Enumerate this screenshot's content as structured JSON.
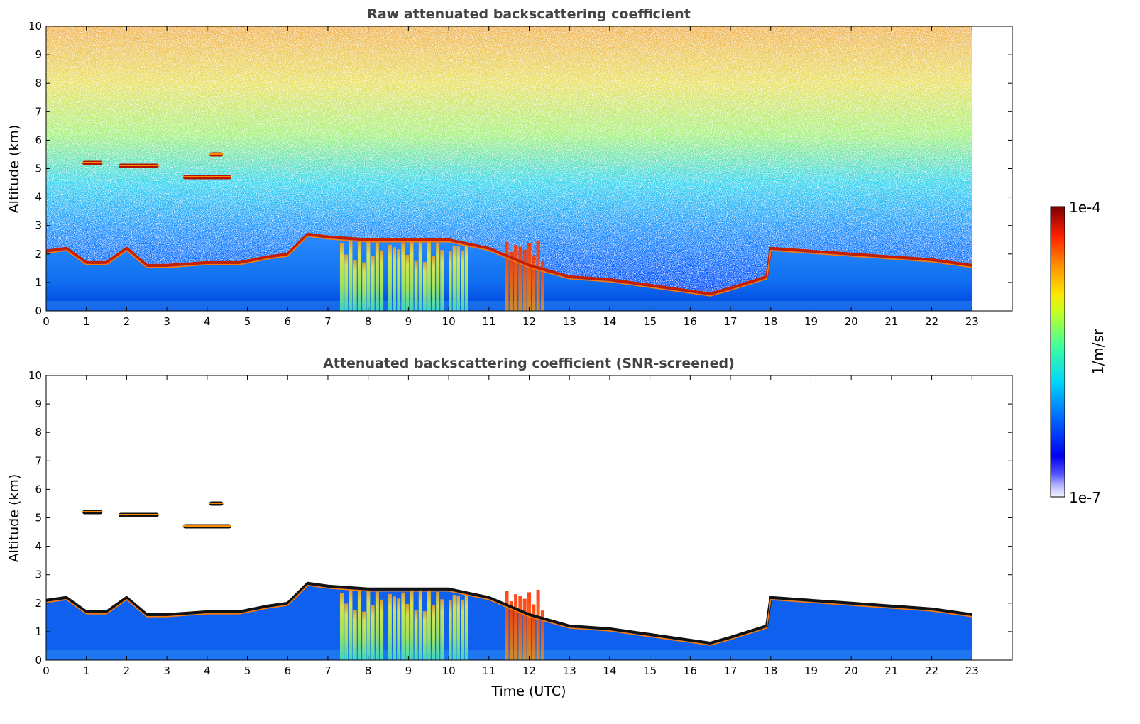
{
  "chart_data": [
    {
      "type": "heatmap",
      "title": "Raw attenuated backscattering coefficient",
      "xlabel": "",
      "ylabel": "Altitude (km)",
      "xlim": [
        0,
        24
      ],
      "ylim": [
        0,
        10
      ],
      "xticks": [
        "0",
        "1",
        "2",
        "3",
        "4",
        "5",
        "6",
        "7",
        "8",
        "9",
        "10",
        "11",
        "12",
        "13",
        "14",
        "15",
        "16",
        "17",
        "18",
        "19",
        "20",
        "21",
        "22",
        "23"
      ],
      "yticks": [
        "0",
        "1",
        "2",
        "3",
        "4",
        "5",
        "6",
        "7",
        "8",
        "9",
        "10"
      ],
      "data_end_hour": 23,
      "screened": false,
      "features": {
        "boundary_layer_top_km": [
          [
            0,
            2.1
          ],
          [
            0.5,
            2.2
          ],
          [
            1,
            1.7
          ],
          [
            1.5,
            1.7
          ],
          [
            2,
            2.2
          ],
          [
            2.5,
            1.6
          ],
          [
            3,
            1.6
          ],
          [
            4,
            1.7
          ],
          [
            4.8,
            1.7
          ],
          [
            5.5,
            1.9
          ],
          [
            6,
            2.0
          ],
          [
            6.5,
            2.7
          ],
          [
            7,
            2.6
          ],
          [
            8,
            2.5
          ],
          [
            9,
            2.5
          ],
          [
            10,
            2.5
          ],
          [
            11,
            2.2
          ],
          [
            12,
            1.6
          ],
          [
            13,
            1.2
          ],
          [
            14,
            1.1
          ],
          [
            15,
            0.9
          ],
          [
            16,
            0.7
          ],
          [
            16.5,
            0.6
          ],
          [
            17,
            0.8
          ],
          [
            17.9,
            1.2
          ],
          [
            18,
            2.2
          ],
          [
            19,
            2.1
          ],
          [
            20,
            2.0
          ],
          [
            21,
            1.9
          ],
          [
            22,
            1.8
          ],
          [
            23,
            1.6
          ]
        ],
        "elevated_layers": [
          {
            "start": 0.9,
            "end": 1.4,
            "altitude_km": 5.2
          },
          {
            "start": 1.8,
            "end": 2.8,
            "altitude_km": 5.1
          },
          {
            "start": 3.4,
            "end": 4.6,
            "altitude_km": 4.7
          },
          {
            "start": 4.05,
            "end": 4.4,
            "altitude_km": 5.5
          }
        ],
        "precipitation_shafts": [
          {
            "start": 7.3,
            "end": 8.4,
            "intensity": 0.62
          },
          {
            "start": 8.5,
            "end": 9.9,
            "intensity": 0.68
          },
          {
            "start": 10.0,
            "end": 10.5,
            "intensity": 0.55
          },
          {
            "start": 11.4,
            "end": 12.4,
            "intensity": 0.85
          }
        ]
      }
    },
    {
      "type": "heatmap",
      "title": "Attenuated backscattering coefficient (SNR-screened)",
      "xlabel": "Time (UTC)",
      "ylabel": "Altitude (km)",
      "xlim": [
        0,
        24
      ],
      "ylim": [
        0,
        10
      ],
      "xticks": [
        "0",
        "1",
        "2",
        "3",
        "4",
        "5",
        "6",
        "7",
        "8",
        "9",
        "10",
        "11",
        "12",
        "13",
        "14",
        "15",
        "16",
        "17",
        "18",
        "19",
        "20",
        "21",
        "22",
        "23"
      ],
      "yticks": [
        "0",
        "1",
        "2",
        "3",
        "4",
        "5",
        "6",
        "7",
        "8",
        "9",
        "10"
      ],
      "data_end_hour": 23,
      "screened": true
    }
  ],
  "colorbar": {
    "label": "1/m/sr",
    "max_label": "1e-4",
    "min_label": "1e-7",
    "scale": "log",
    "colormap": "jet",
    "colors": [
      "#ffffff",
      "#0000ff",
      "#00a0ff",
      "#00ffff",
      "#80ff80",
      "#ffff00",
      "#ff8000",
      "#ff0000",
      "#800000"
    ]
  }
}
